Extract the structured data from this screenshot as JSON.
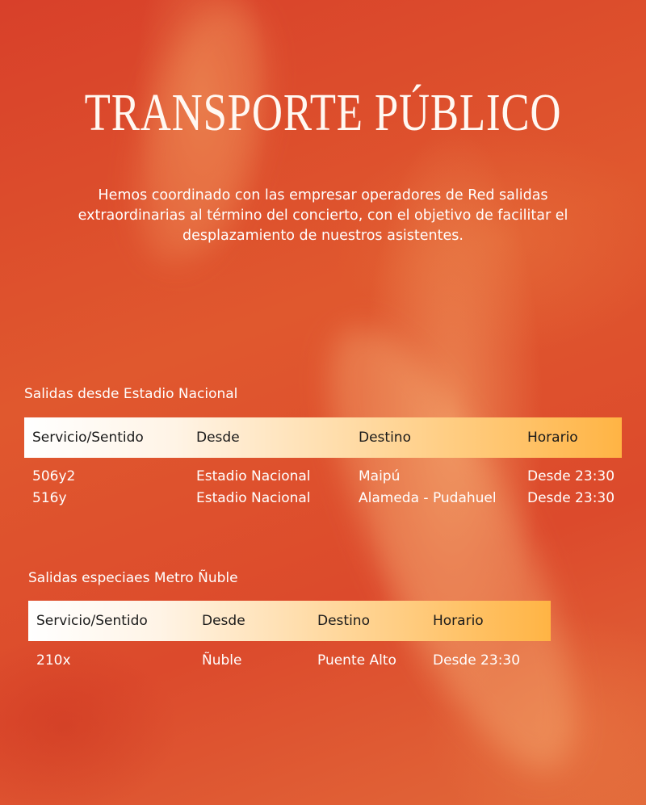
{
  "title": "TRANSPORTE PÚBLICO",
  "intro": "Hemos coordinado con las empresar operadores de Red salidas extraordinarias al término del concierto, con el objetivo de facilitar el desplazamiento de nuestros asistentes.",
  "colors": {
    "background": "#d8402a",
    "header_start": "#ffffff",
    "header_end": "#ffb444"
  },
  "tables": [
    {
      "label": "Salidas desde Estadio Nacional",
      "headers": [
        "Servicio/Sentido",
        "Desde",
        "Destino",
        "Horario"
      ],
      "rows": [
        [
          "506y2",
          "Estadio Nacional",
          "Maipú",
          "Desde 23:30"
        ],
        [
          "516y",
          "Estadio Nacional",
          "Alameda - Pudahuel",
          "Desde 23:30"
        ]
      ]
    },
    {
      "label": "Salidas especiaes Metro Ñuble",
      "headers": [
        "Servicio/Sentido",
        "Desde",
        "Destino",
        "Horario"
      ],
      "rows": [
        [
          "210x",
          "Ñuble",
          "Puente Alto",
          "Desde 23:30"
        ]
      ]
    }
  ]
}
